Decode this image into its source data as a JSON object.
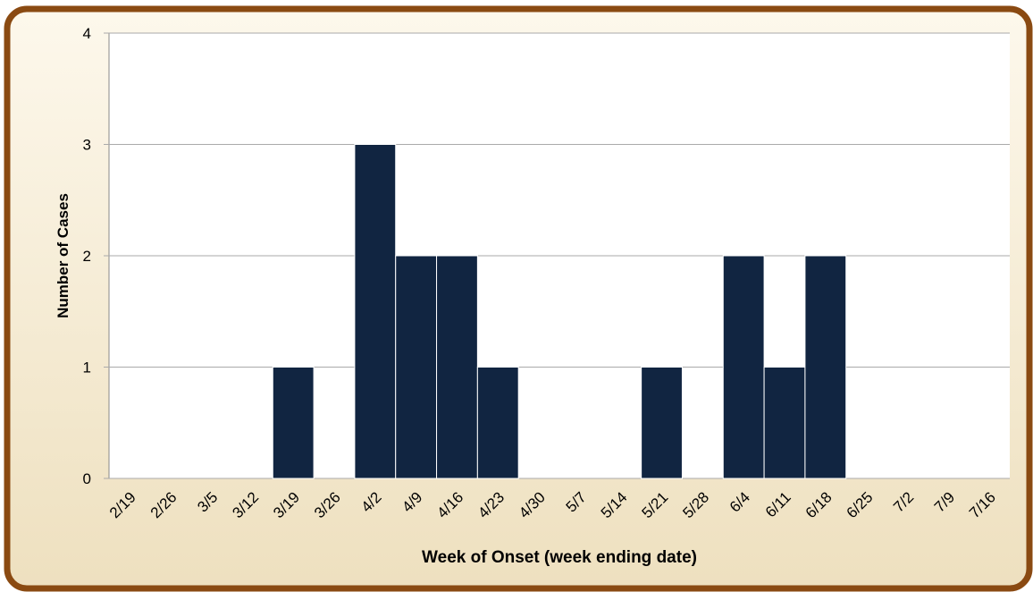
{
  "chart_data": {
    "type": "bar",
    "x_label": "Week of Onset (week ending date)",
    "y_label": "Number of Cases",
    "categories": [
      "2/19",
      "2/26",
      "3/5",
      "3/12",
      "3/19",
      "3/26",
      "4/2",
      "4/9",
      "4/16",
      "4/23",
      "4/30",
      "5/7",
      "5/14",
      "5/21",
      "5/28",
      "6/4",
      "6/11",
      "6/18",
      "6/25",
      "7/2",
      "7/9",
      "7/16"
    ],
    "values": [
      0,
      0,
      0,
      0,
      1,
      0,
      3,
      2,
      2,
      1,
      0,
      0,
      0,
      1,
      0,
      2,
      1,
      2,
      0,
      0,
      0,
      0
    ],
    "color": "#112541",
    "ylim": [
      0,
      4
    ],
    "yticks": [
      0,
      1,
      2,
      3,
      4
    ],
    "grid": true
  }
}
